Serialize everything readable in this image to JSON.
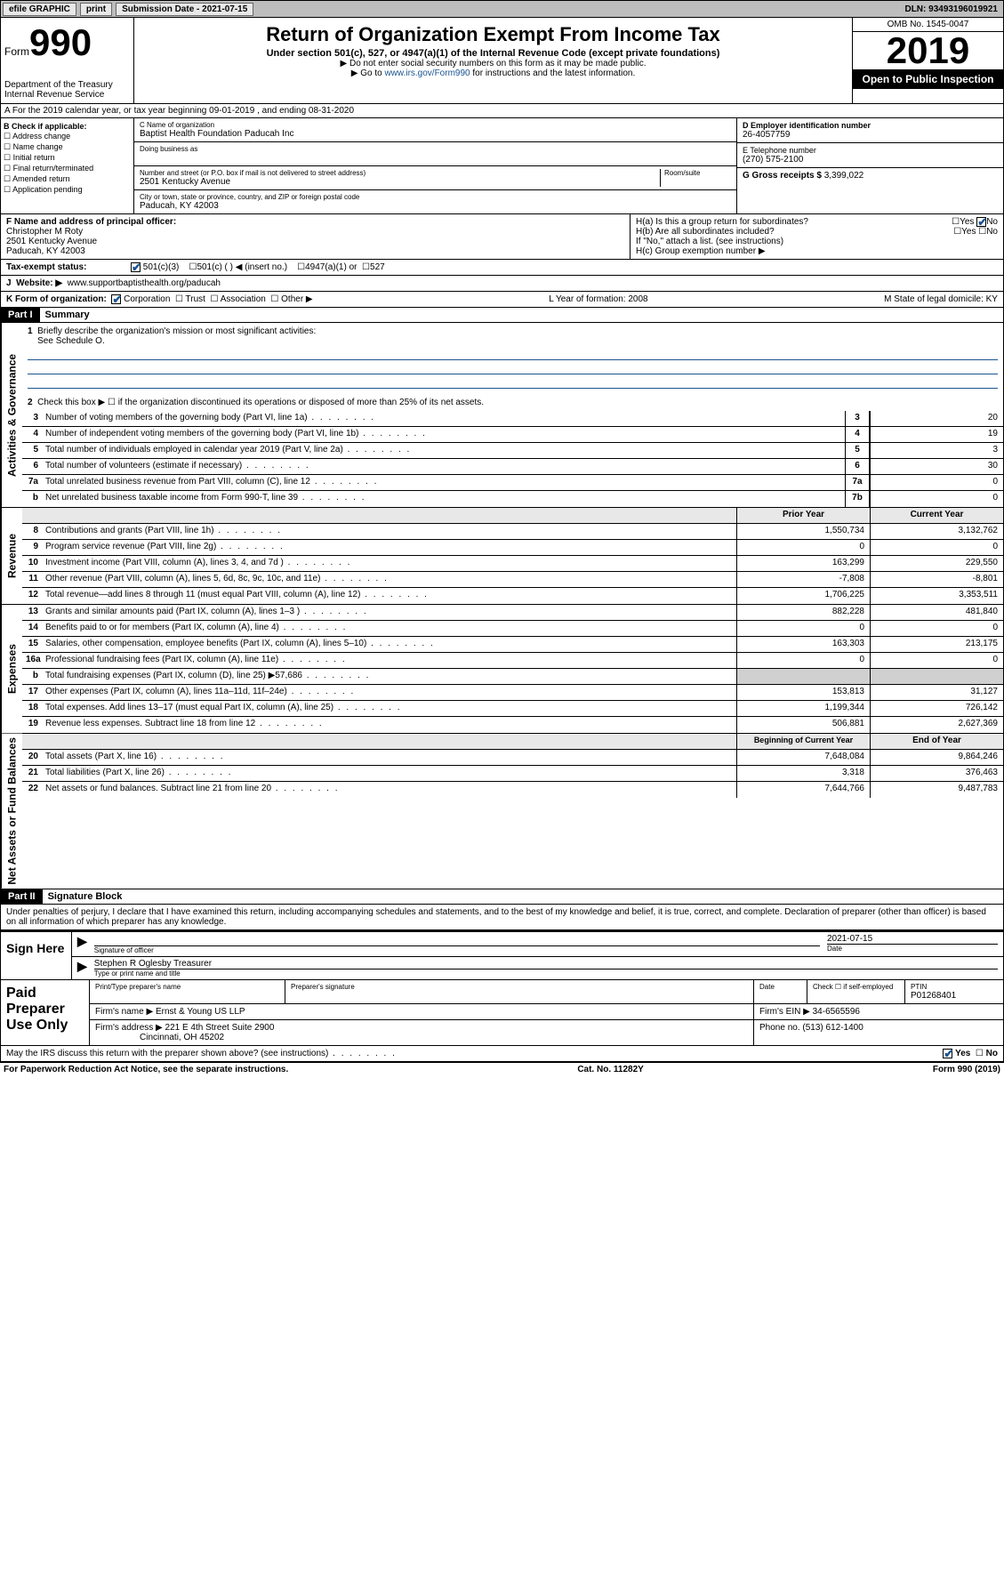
{
  "topbar": {
    "efile": "efile GRAPHIC",
    "print": "print",
    "subdate_label": "Submission Date - 2021-07-15",
    "dln": "DLN: 93493196019921"
  },
  "header": {
    "form_word": "Form",
    "form_num": "990",
    "dept": "Department of the Treasury\nInternal Revenue Service",
    "title": "Return of Organization Exempt From Income Tax",
    "subtitle": "Under section 501(c), 527, or 4947(a)(1) of the Internal Revenue Code (except private foundations)",
    "note1": "▶ Do not enter social security numbers on this form as it may be made public.",
    "note2_pre": "▶ Go to ",
    "note2_link": "www.irs.gov/Form990",
    "note2_post": " for instructions and the latest information.",
    "omb": "OMB No. 1545-0047",
    "year": "2019",
    "inspect": "Open to Public Inspection"
  },
  "A": {
    "text": "A For the 2019 calendar year, or tax year beginning 09-01-2019   , and ending 08-31-2020"
  },
  "B": {
    "label": "B Check if applicable:",
    "items": [
      "Address change",
      "Name change",
      "Initial return",
      "Final return/terminated",
      "Amended return",
      "Application pending"
    ]
  },
  "C": {
    "name_label": "C Name of organization",
    "name": "Baptist Health Foundation Paducah Inc",
    "dba_label": "Doing business as",
    "addr_label": "Number and street (or P.O. box if mail is not delivered to street address)",
    "room_label": "Room/suite",
    "addr": "2501 Kentucky Avenue",
    "city_label": "City or town, state or province, country, and ZIP or foreign postal code",
    "city": "Paducah, KY  42003"
  },
  "D": {
    "label": "D Employer identification number",
    "val": "26-4057759"
  },
  "E": {
    "label": "E Telephone number",
    "val": "(270) 575-2100"
  },
  "G": {
    "label": "G Gross receipts $",
    "val": "3,399,022"
  },
  "F": {
    "label": "F  Name and address of principal officer:",
    "name": "Christopher M Roty",
    "addr1": "2501 Kentucky Avenue",
    "addr2": "Paducah, KY  42003"
  },
  "H": {
    "a": "H(a)  Is this a group return for subordinates?",
    "b": "H(b)  Are all subordinates included?",
    "b_note": "If \"No,\" attach a list. (see instructions)",
    "c": "H(c)  Group exemption number ▶"
  },
  "I": {
    "label": "Tax-exempt status:",
    "opts": [
      "501(c)(3)",
      "501(c) (  ) ◀ (insert no.)",
      "4947(a)(1) or",
      "527"
    ]
  },
  "J": {
    "label": "Website: ▶",
    "val": "www.supportbaptisthealth.org/paducah"
  },
  "K": {
    "label": "K Form of organization:",
    "opts": [
      "Corporation",
      "Trust",
      "Association",
      "Other ▶"
    ],
    "L": "L Year of formation: 2008",
    "M": "M State of legal domicile: KY"
  },
  "partI": {
    "hdr": "Part I",
    "title": "Summary",
    "l1": "Briefly describe the organization's mission or most significant activities:",
    "l1v": "See Schedule O.",
    "l2": "Check this box ▶ ☐  if the organization discontinued its operations or disposed of more than 25% of its net assets.",
    "vlab_gov": "Activities & Governance",
    "vlab_rev": "Revenue",
    "vlab_exp": "Expenses",
    "vlab_net": "Net Assets or Fund Balances",
    "col_prior": "Prior Year",
    "col_curr": "Current Year",
    "col_beg": "Beginning of Current Year",
    "col_end": "End of Year",
    "rows_gov": [
      {
        "n": "3",
        "d": "Number of voting members of the governing body (Part VI, line 1a)",
        "r": "3",
        "v": "20"
      },
      {
        "n": "4",
        "d": "Number of independent voting members of the governing body (Part VI, line 1b)",
        "r": "4",
        "v": "19"
      },
      {
        "n": "5",
        "d": "Total number of individuals employed in calendar year 2019 (Part V, line 2a)",
        "r": "5",
        "v": "3"
      },
      {
        "n": "6",
        "d": "Total number of volunteers (estimate if necessary)",
        "r": "6",
        "v": "30"
      },
      {
        "n": "7a",
        "d": "Total unrelated business revenue from Part VIII, column (C), line 12",
        "r": "7a",
        "v": "0"
      },
      {
        "n": "b",
        "d": "Net unrelated business taxable income from Form 990-T, line 39",
        "r": "7b",
        "v": "0"
      }
    ],
    "rows_rev": [
      {
        "n": "8",
        "d": "Contributions and grants (Part VIII, line 1h)",
        "p": "1,550,734",
        "c": "3,132,762"
      },
      {
        "n": "9",
        "d": "Program service revenue (Part VIII, line 2g)",
        "p": "0",
        "c": "0"
      },
      {
        "n": "10",
        "d": "Investment income (Part VIII, column (A), lines 3, 4, and 7d )",
        "p": "163,299",
        "c": "229,550"
      },
      {
        "n": "11",
        "d": "Other revenue (Part VIII, column (A), lines 5, 6d, 8c, 9c, 10c, and 11e)",
        "p": "-7,808",
        "c": "-8,801"
      },
      {
        "n": "12",
        "d": "Total revenue—add lines 8 through 11 (must equal Part VIII, column (A), line 12)",
        "p": "1,706,225",
        "c": "3,353,511"
      }
    ],
    "rows_exp": [
      {
        "n": "13",
        "d": "Grants and similar amounts paid (Part IX, column (A), lines 1–3 )",
        "p": "882,228",
        "c": "481,840"
      },
      {
        "n": "14",
        "d": "Benefits paid to or for members (Part IX, column (A), line 4)",
        "p": "0",
        "c": "0"
      },
      {
        "n": "15",
        "d": "Salaries, other compensation, employee benefits (Part IX, column (A), lines 5–10)",
        "p": "163,303",
        "c": "213,175"
      },
      {
        "n": "16a",
        "d": "Professional fundraising fees (Part IX, column (A), line 11e)",
        "p": "0",
        "c": "0"
      },
      {
        "n": "b",
        "d": "Total fundraising expenses (Part IX, column (D), line 25) ▶57,686",
        "p": "",
        "c": "",
        "shade": true
      },
      {
        "n": "17",
        "d": "Other expenses (Part IX, column (A), lines 11a–11d, 11f–24e)",
        "p": "153,813",
        "c": "31,127"
      },
      {
        "n": "18",
        "d": "Total expenses. Add lines 13–17 (must equal Part IX, column (A), line 25)",
        "p": "1,199,344",
        "c": "726,142"
      },
      {
        "n": "19",
        "d": "Revenue less expenses. Subtract line 18 from line 12",
        "p": "506,881",
        "c": "2,627,369"
      }
    ],
    "rows_net": [
      {
        "n": "20",
        "d": "Total assets (Part X, line 16)",
        "p": "7,648,084",
        "c": "9,864,246"
      },
      {
        "n": "21",
        "d": "Total liabilities (Part X, line 26)",
        "p": "3,318",
        "c": "376,463"
      },
      {
        "n": "22",
        "d": "Net assets or fund balances. Subtract line 21 from line 20",
        "p": "7,644,766",
        "c": "9,487,783"
      }
    ]
  },
  "partII": {
    "hdr": "Part II",
    "title": "Signature Block",
    "decl": "Under penalties of perjury, I declare that I have examined this return, including accompanying schedules and statements, and to the best of my knowledge and belief, it is true, correct, and complete. Declaration of preparer (other than officer) is based on all information of which preparer has any knowledge.",
    "sign_here": "Sign Here",
    "sig_officer": "Signature of officer",
    "sig_date": "2021-07-15",
    "date_lbl": "Date",
    "officer_name": "Stephen R Oglesby Treasurer",
    "type_name_lbl": "Type or print name and title",
    "paid_prep": "Paid Preparer Use Only",
    "prep_name_lbl": "Print/Type preparer's name",
    "prep_sig_lbl": "Preparer's signature",
    "prep_date_lbl": "Date",
    "self_emp": "Check ☐ if self-employed",
    "ptin_lbl": "PTIN",
    "ptin": "P01268401",
    "firm_name_lbl": "Firm's name    ▶",
    "firm_name": "Ernst & Young US LLP",
    "firm_ein_lbl": "Firm's EIN ▶",
    "firm_ein": "34-6565596",
    "firm_addr_lbl": "Firm's address ▶",
    "firm_addr": "221 E 4th Street Suite 2900",
    "firm_city": "Cincinnati, OH  45202",
    "phone_lbl": "Phone no.",
    "phone": "(513) 612-1400",
    "discuss": "May the IRS discuss this return with the preparer shown above? (see instructions)",
    "yes": "Yes",
    "no": "No"
  },
  "footer": {
    "pra": "For Paperwork Reduction Act Notice, see the separate instructions.",
    "cat": "Cat. No. 11282Y",
    "form": "Form 990 (2019)"
  }
}
